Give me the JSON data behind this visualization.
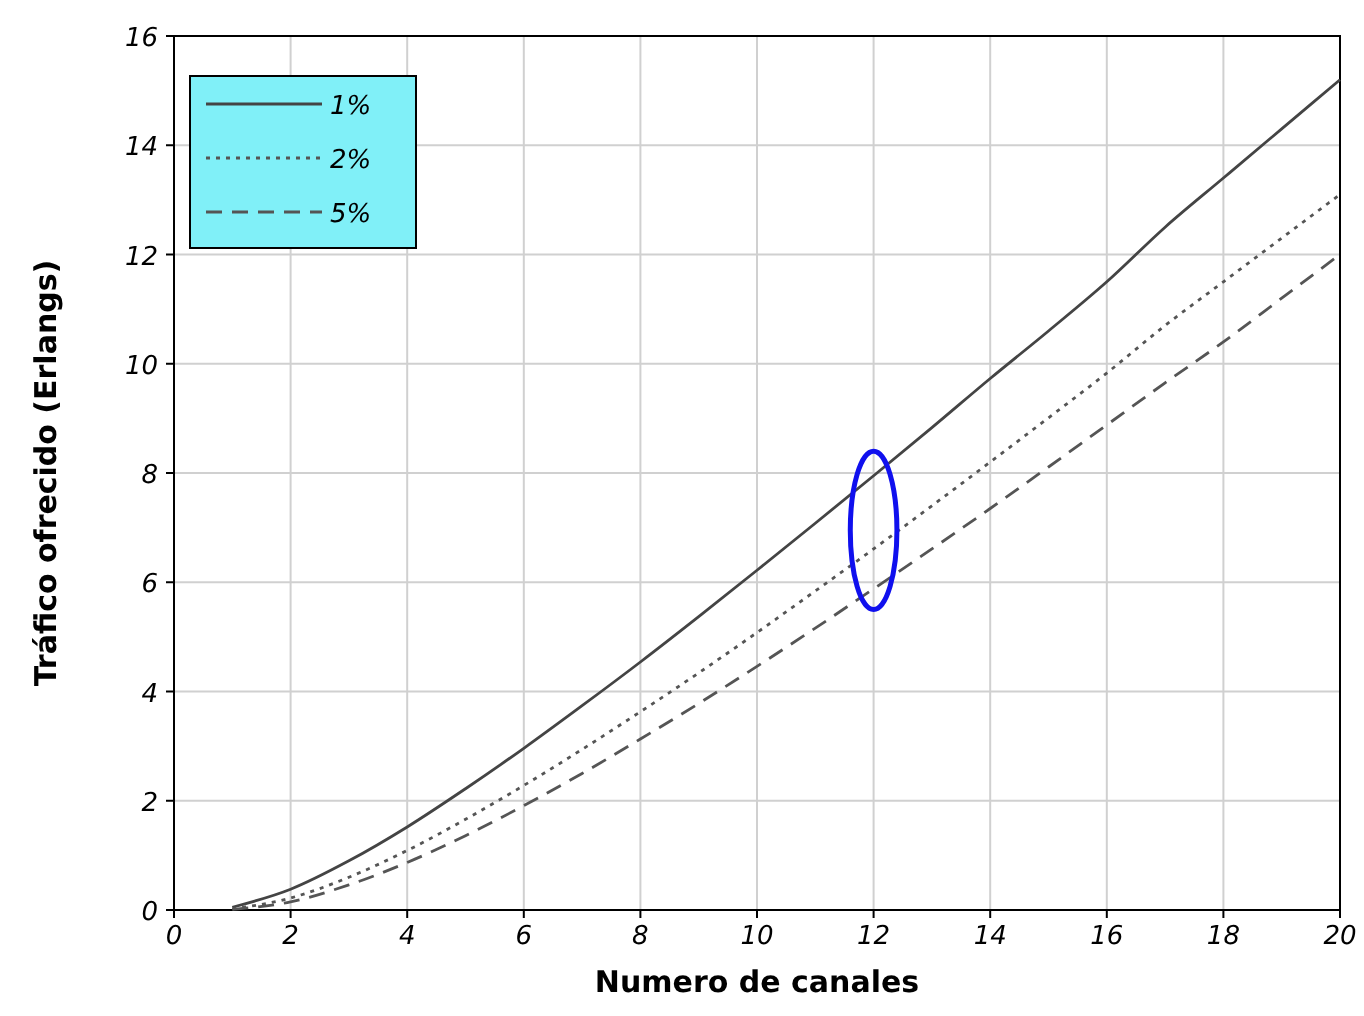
{
  "chart_data": {
    "type": "line",
    "xlabel": "Numero de canales",
    "ylabel": "Tráfico ofrecido (Erlangs)",
    "x": [
      1,
      2,
      3,
      4,
      5,
      6,
      7,
      8,
      9,
      10,
      11,
      12,
      13,
      14,
      15,
      16,
      17,
      18,
      19,
      20
    ],
    "xlim": [
      0,
      20
    ],
    "xticks": [
      0,
      2,
      4,
      6,
      8,
      10,
      12,
      14,
      16,
      18,
      20
    ],
    "ylim": [
      0,
      16
    ],
    "yticks": [
      0,
      2,
      4,
      6,
      8,
      10,
      12,
      14,
      16
    ],
    "grid": true,
    "legend": "top left",
    "series": [
      {
        "name": "1%",
        "color": "#444444",
        "line_style": "solid",
        "values": [
          0.05,
          0.38,
          0.9,
          1.52,
          2.22,
          2.96,
          3.74,
          4.54,
          5.37,
          6.22,
          7.08,
          7.95,
          8.83,
          9.73,
          10.6,
          11.5,
          12.5,
          13.4,
          14.3,
          15.2
        ]
      },
      {
        "name": "2%",
        "color": "#555555",
        "line_style": "dotted",
        "values": [
          0.02,
          0.22,
          0.6,
          1.09,
          1.66,
          2.28,
          2.94,
          3.63,
          4.34,
          5.08,
          5.84,
          6.61,
          7.4,
          8.2,
          9.01,
          9.83,
          10.7,
          11.5,
          12.3,
          13.1
        ]
      },
      {
        "name": "5%",
        "color": "#555555",
        "line_style": "dashed",
        "values": [
          0.01,
          0.15,
          0.46,
          0.87,
          1.36,
          1.91,
          2.5,
          3.13,
          3.78,
          4.46,
          5.16,
          5.88,
          6.61,
          7.35,
          8.11,
          8.88,
          9.65,
          10.4,
          11.2,
          12.0
        ]
      }
    ]
  }
}
